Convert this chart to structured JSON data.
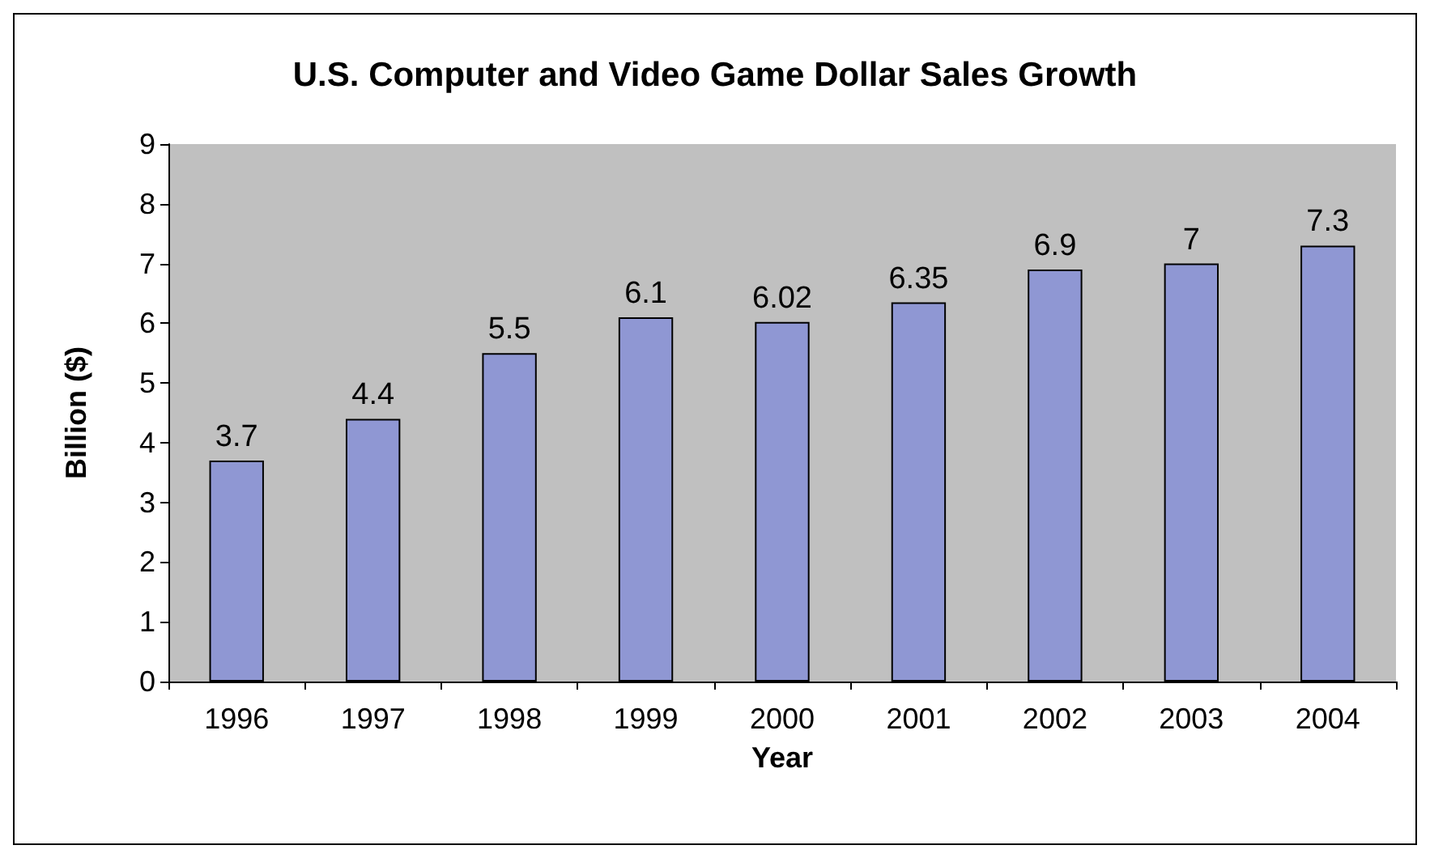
{
  "chart_data": {
    "type": "bar",
    "title": "U.S. Computer and Video Game Dollar Sales Growth",
    "xlabel": "Year",
    "ylabel": "Billion ($)",
    "categories": [
      "1996",
      "1997",
      "1998",
      "1999",
      "2000",
      "2001",
      "2002",
      "2003",
      "2004"
    ],
    "values": [
      3.7,
      4.4,
      5.5,
      6.1,
      6.02,
      6.35,
      6.9,
      7,
      7.3
    ],
    "color": "#8f97d3",
    "ylim": [
      0,
      9
    ],
    "yticks": [
      0,
      1,
      2,
      3,
      4,
      5,
      6,
      7,
      8,
      9
    ],
    "grid": false,
    "data_labels": true
  }
}
